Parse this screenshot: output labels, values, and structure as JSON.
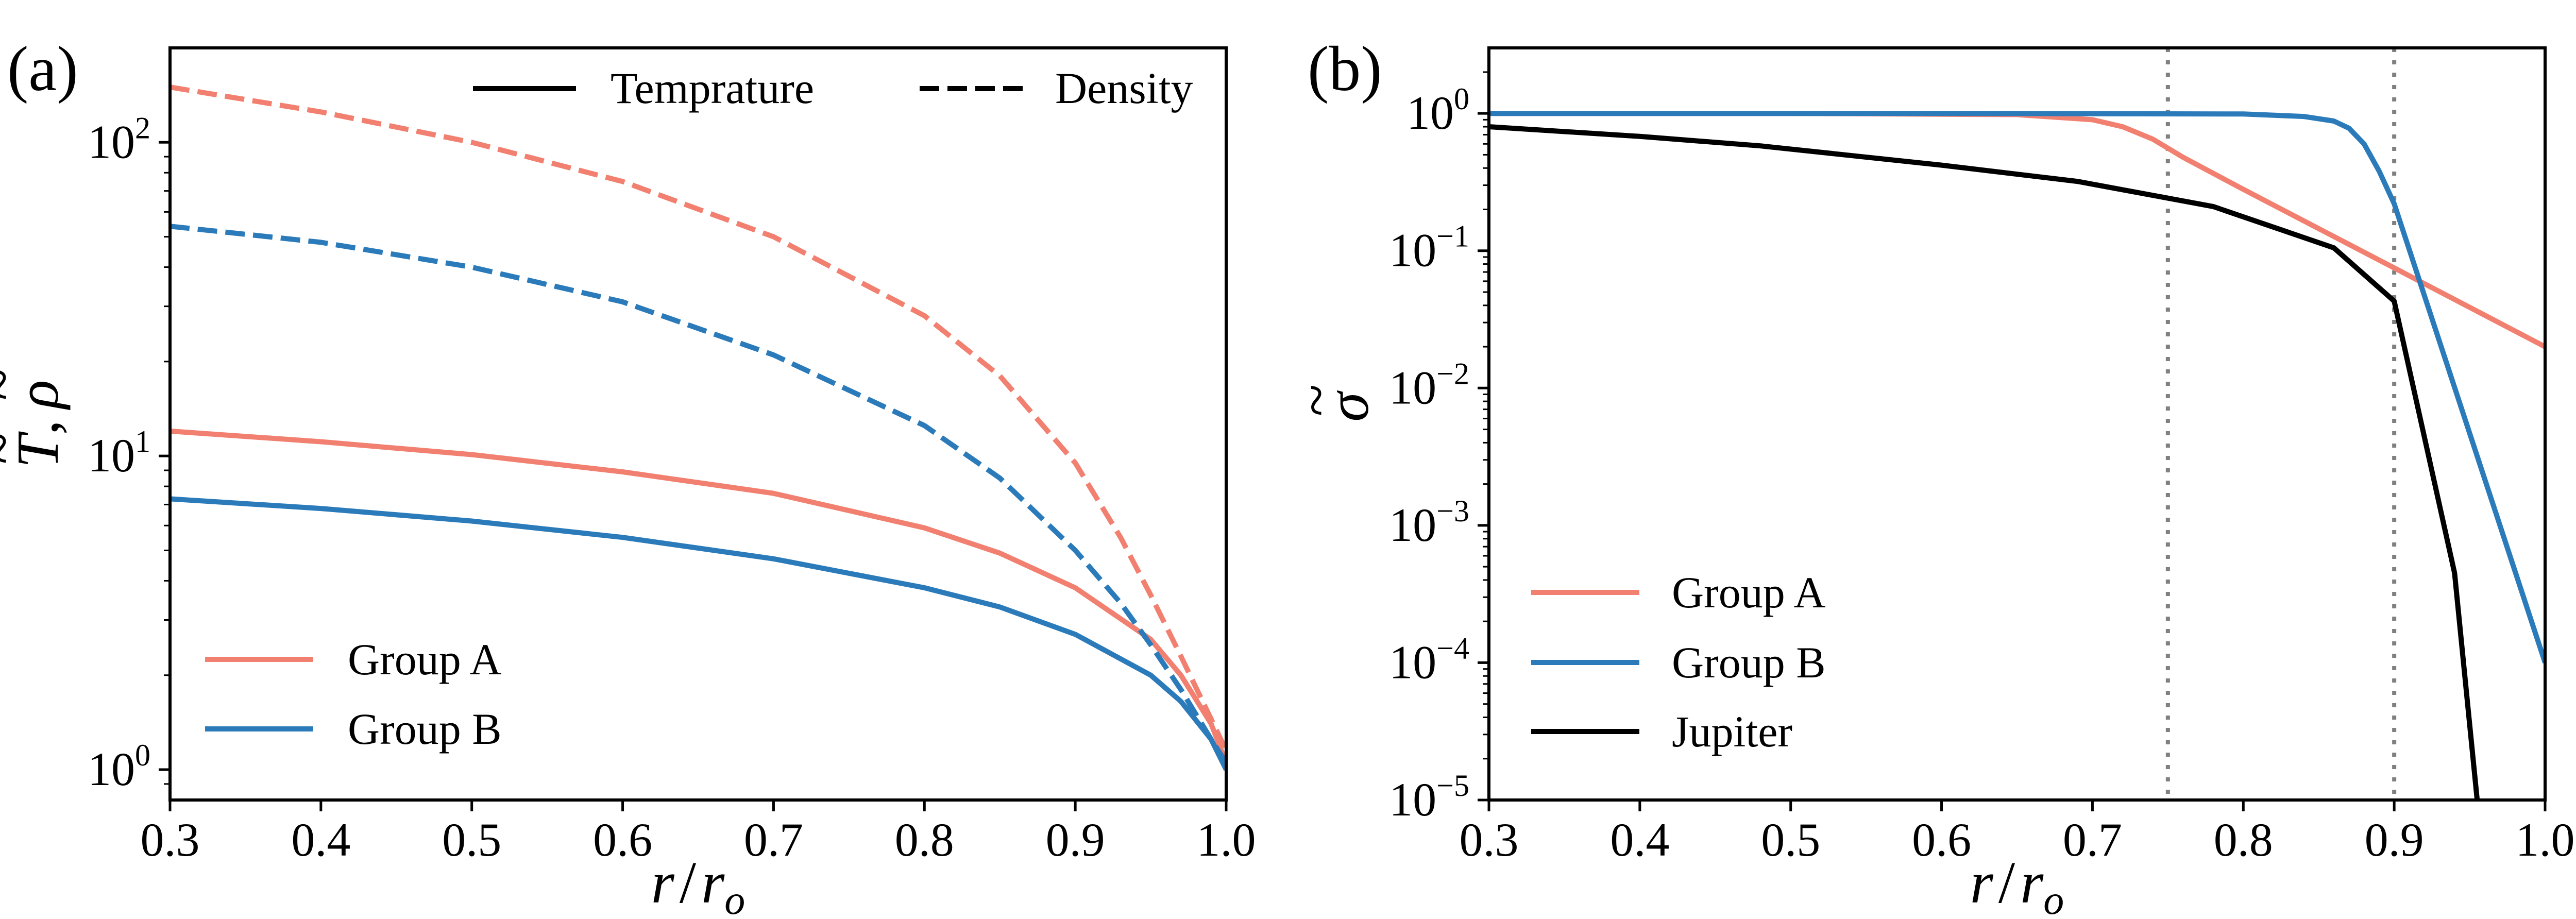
{
  "colors": {
    "group_a": "#f28070",
    "group_b": "#2b7bba",
    "jupiter": "#000000",
    "vline": "#808080"
  },
  "chart_data": [
    {
      "panel": "(a)",
      "type": "line",
      "title": "",
      "xlabel": "r / r_o",
      "ylabel": "T̃, ρ̃",
      "xlabel_parts": {
        "main": "r",
        "sep": "/",
        "denom": "r",
        "sub": "o"
      },
      "ylabel_parts": {
        "t": "T",
        "comma": ",",
        "rho": "ρ",
        "tilde": "~"
      },
      "xscale": "linear",
      "yscale": "log",
      "xlim": [
        0.3,
        1.0
      ],
      "ylim": [
        0.8,
        200
      ],
      "xticks": [
        0.3,
        0.4,
        0.5,
        0.6,
        0.7,
        0.8,
        0.9,
        1.0
      ],
      "xtick_labels": [
        "0.3",
        "0.4",
        "0.5",
        "0.6",
        "0.7",
        "0.8",
        "0.9",
        "1.0"
      ],
      "ytick_labels": [
        {
          "value": 1,
          "base": "10",
          "exp": "0"
        },
        {
          "value": 10,
          "base": "10",
          "exp": "1"
        },
        {
          "value": 100,
          "base": "10",
          "exp": "2"
        }
      ],
      "legends": [
        {
          "location": "upper-center",
          "entries": [
            {
              "label": "Temprature",
              "style": "solid",
              "color": "#000000"
            },
            {
              "label": "Density",
              "style": "dashed",
              "color": "#000000"
            }
          ]
        },
        {
          "location": "lower-left",
          "entries": [
            {
              "label": "Group A",
              "style": "solid",
              "color": "#f28070"
            },
            {
              "label": "Group B",
              "style": "solid",
              "color": "#2b7bba"
            }
          ]
        }
      ],
      "series": [
        {
          "name": "Group A Temprature",
          "style": "solid",
          "color_key": "group_a",
          "x": [
            0.3,
            0.4,
            0.5,
            0.6,
            0.7,
            0.8,
            0.85,
            0.9,
            0.95,
            0.97,
            0.99,
            1.0
          ],
          "y": [
            12.0,
            11.1,
            10.1,
            8.9,
            7.6,
            5.9,
            4.9,
            3.8,
            2.6,
            2.0,
            1.4,
            1.05
          ]
        },
        {
          "name": "Group B Temprature",
          "style": "solid",
          "color_key": "group_b",
          "x": [
            0.3,
            0.4,
            0.5,
            0.6,
            0.7,
            0.8,
            0.85,
            0.9,
            0.95,
            0.97,
            0.99,
            1.0
          ],
          "y": [
            7.3,
            6.8,
            6.2,
            5.5,
            4.7,
            3.8,
            3.3,
            2.7,
            2.0,
            1.65,
            1.25,
            1.0
          ]
        },
        {
          "name": "Group A Density",
          "style": "dashed",
          "color_key": "group_a",
          "x": [
            0.3,
            0.4,
            0.5,
            0.6,
            0.7,
            0.8,
            0.85,
            0.9,
            0.93,
            0.95,
            0.97,
            0.99,
            1.0
          ],
          "y": [
            150,
            125,
            100,
            75,
            50,
            28,
            18,
            9.5,
            5.5,
            3.6,
            2.3,
            1.45,
            1.15
          ]
        },
        {
          "name": "Group B Density",
          "style": "dashed",
          "color_key": "group_b",
          "x": [
            0.3,
            0.4,
            0.5,
            0.6,
            0.7,
            0.8,
            0.85,
            0.9,
            0.93,
            0.95,
            0.97,
            0.99,
            1.0
          ],
          "y": [
            54,
            48,
            40,
            31,
            21,
            12.5,
            8.5,
            5.0,
            3.4,
            2.5,
            1.8,
            1.25,
            1.05
          ]
        }
      ]
    },
    {
      "panel": "(b)",
      "type": "line",
      "title": "",
      "xlabel": "r / r_o",
      "ylabel": "σ̃",
      "xlabel_parts": {
        "main": "r",
        "sep": "/",
        "denom": "r",
        "sub": "o"
      },
      "ylabel_parts": {
        "sigma": "σ",
        "tilde": "~"
      },
      "xscale": "linear",
      "yscale": "log",
      "xlim": [
        0.3,
        1.0
      ],
      "ylim": [
        1e-05,
        3
      ],
      "xticks": [
        0.3,
        0.4,
        0.5,
        0.6,
        0.7,
        0.8,
        0.9,
        1.0
      ],
      "xtick_labels": [
        "0.3",
        "0.4",
        "0.5",
        "0.6",
        "0.7",
        "0.8",
        "0.9",
        "1.0"
      ],
      "ytick_labels": [
        {
          "value": 1e-05,
          "base": "10",
          "exp": "−5"
        },
        {
          "value": 0.0001,
          "base": "10",
          "exp": "−4"
        },
        {
          "value": 0.001,
          "base": "10",
          "exp": "−3"
        },
        {
          "value": 0.01,
          "base": "10",
          "exp": "−2"
        },
        {
          "value": 0.1,
          "base": "10",
          "exp": "−1"
        },
        {
          "value": 1,
          "base": "10",
          "exp": "0"
        }
      ],
      "vlines": [
        0.75,
        0.9
      ],
      "legends": [
        {
          "location": "lower-left",
          "entries": [
            {
              "label": "Group A",
              "style": "solid",
              "color": "#f28070"
            },
            {
              "label": "Group B",
              "style": "solid",
              "color": "#2b7bba"
            },
            {
              "label": "Jupiter",
              "style": "solid",
              "color": "#000000"
            }
          ]
        }
      ],
      "series": [
        {
          "name": "Group A",
          "style": "solid",
          "color_key": "group_a",
          "x": [
            0.3,
            0.5,
            0.65,
            0.7,
            0.72,
            0.74,
            0.76,
            0.8,
            0.9,
            1.0
          ],
          "y": [
            1.0,
            1.0,
            0.98,
            0.9,
            0.8,
            0.65,
            0.48,
            0.28,
            0.075,
            0.02
          ]
        },
        {
          "name": "Group B",
          "style": "solid",
          "color_key": "group_b",
          "x": [
            0.3,
            0.6,
            0.8,
            0.84,
            0.86,
            0.87,
            0.88,
            0.89,
            0.9,
            1.0
          ],
          "y": [
            1.0,
            1.0,
            0.99,
            0.95,
            0.88,
            0.78,
            0.6,
            0.38,
            0.22,
            0.0001
          ]
        },
        {
          "name": "Jupiter",
          "style": "solid",
          "color_key": "jupiter",
          "x": [
            0.3,
            0.4,
            0.48,
            0.6,
            0.69,
            0.78,
            0.86,
            0.9,
            0.94,
            0.955
          ],
          "y": [
            0.8,
            0.68,
            0.58,
            0.42,
            0.32,
            0.21,
            0.105,
            0.043,
            0.00045,
            1e-05
          ]
        }
      ]
    }
  ]
}
